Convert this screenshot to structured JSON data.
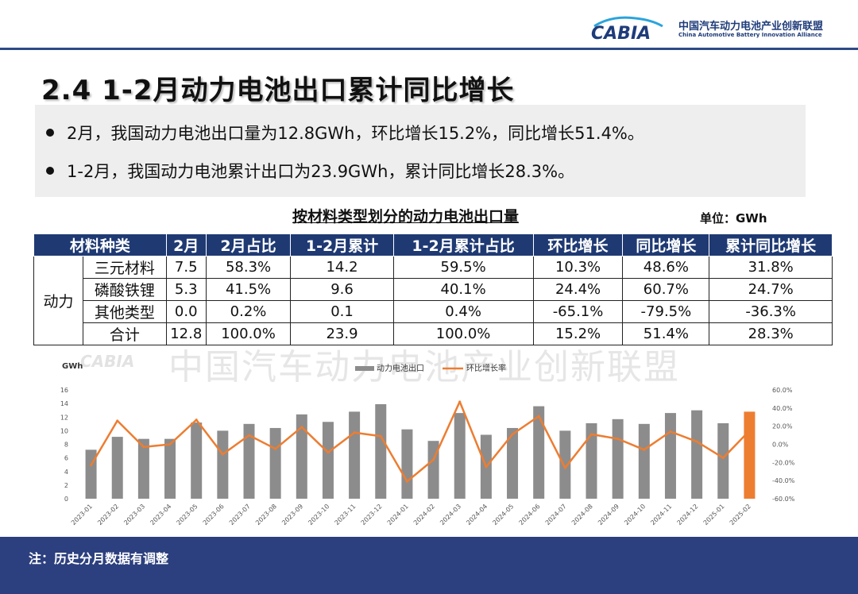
{
  "brand": {
    "logo_text": "CABIA",
    "name_cn": "中国汽车动力电池产业创新联盟",
    "name_en": "China Automotive Battery Innovation Alliance",
    "colors": {
      "primary": "#1f3a73",
      "bar": "#8c8c8c",
      "bar_highlight": "#ed7d31",
      "line": "#ed7d31"
    }
  },
  "page": {
    "title": "2.4 1-2月动力电池出口累计同比增长"
  },
  "bullets": [
    "2月，我国动力电池出口量为12.8GWh，环比增长15.2%，同比增长51.4%。",
    "1-2月，我国动力电池累计出口为23.9GWh，累计同比增长28.3%。"
  ],
  "table": {
    "title": "按材料类型划分的动力电池出口量",
    "unit": "单位：GWh",
    "group_label": "动力",
    "headers": [
      "材料种类",
      "2月",
      "2月占比",
      "1-2月累计",
      "1-2月累计占比",
      "环比增长",
      "同比增长",
      "累计同比增长"
    ],
    "rows": [
      [
        "三元材料",
        "7.5",
        "58.3%",
        "14.2",
        "59.5%",
        "10.3%",
        "48.6%",
        "31.8%"
      ],
      [
        "磷酸铁锂",
        "5.3",
        "41.5%",
        "9.6",
        "40.1%",
        "24.4%",
        "60.7%",
        "24.7%"
      ],
      [
        "其他类型",
        "0.0",
        "0.2%",
        "0.1",
        "0.4%",
        "-65.1%",
        "-79.5%",
        "-36.3%"
      ],
      [
        "合计",
        "12.8",
        "100.0%",
        "23.9",
        "100.0%",
        "15.2%",
        "51.4%",
        "28.3%"
      ]
    ]
  },
  "watermark": {
    "text": "中国汽车动力电池产业创新联盟",
    "logo": "CABIA"
  },
  "chart_data": {
    "type": "bar",
    "title": "",
    "ylabel": "GWh",
    "y2label": "",
    "ylim": [
      0,
      16
    ],
    "yticks": [
      "0",
      "2",
      "4",
      "6",
      "8",
      "10",
      "12",
      "14",
      "16"
    ],
    "y2lim": [
      -60,
      60
    ],
    "y2ticks": [
      "-60.0%",
      "-40.0%",
      "-20.0%",
      "0.0%",
      "20.0%",
      "40.0%",
      "60.0%"
    ],
    "categories": [
      "2023-01",
      "2023-02",
      "2023-03",
      "2023-04",
      "2023-05",
      "2023-06",
      "2023-07",
      "2023-08",
      "2023-09",
      "2023-10",
      "2023-11",
      "2023-12",
      "2024-01",
      "2024-02",
      "2024-03",
      "2024-04",
      "2024-05",
      "2024-06",
      "2024-07",
      "2024-08",
      "2024-09",
      "2024-10",
      "2024-11",
      "2024-12",
      "2025-01",
      "2025-02"
    ],
    "series": [
      {
        "name": "动力电池出口",
        "type": "bar",
        "axis": "left",
        "values": [
          7.2,
          9.1,
          8.8,
          8.8,
          11.2,
          10.0,
          11.0,
          10.4,
          12.4,
          11.3,
          12.8,
          13.9,
          10.2,
          8.5,
          12.6,
          9.4,
          10.4,
          13.6,
          10.0,
          11.1,
          11.7,
          11.0,
          12.6,
          13.0,
          11.1,
          12.8
        ]
      },
      {
        "name": "环比增长率",
        "type": "line",
        "axis": "right",
        "values": [
          -23,
          26,
          -3,
          0,
          27,
          -11,
          10,
          -5,
          19,
          -9,
          13,
          9,
          -41,
          -17,
          47,
          -25,
          11,
          31,
          -26,
          11,
          6,
          -6,
          14,
          3,
          -15,
          15
        ]
      }
    ],
    "highlight_last_bar": true,
    "legend": "top-center"
  },
  "footer": {
    "note": "注：历史分月数据有调整"
  }
}
